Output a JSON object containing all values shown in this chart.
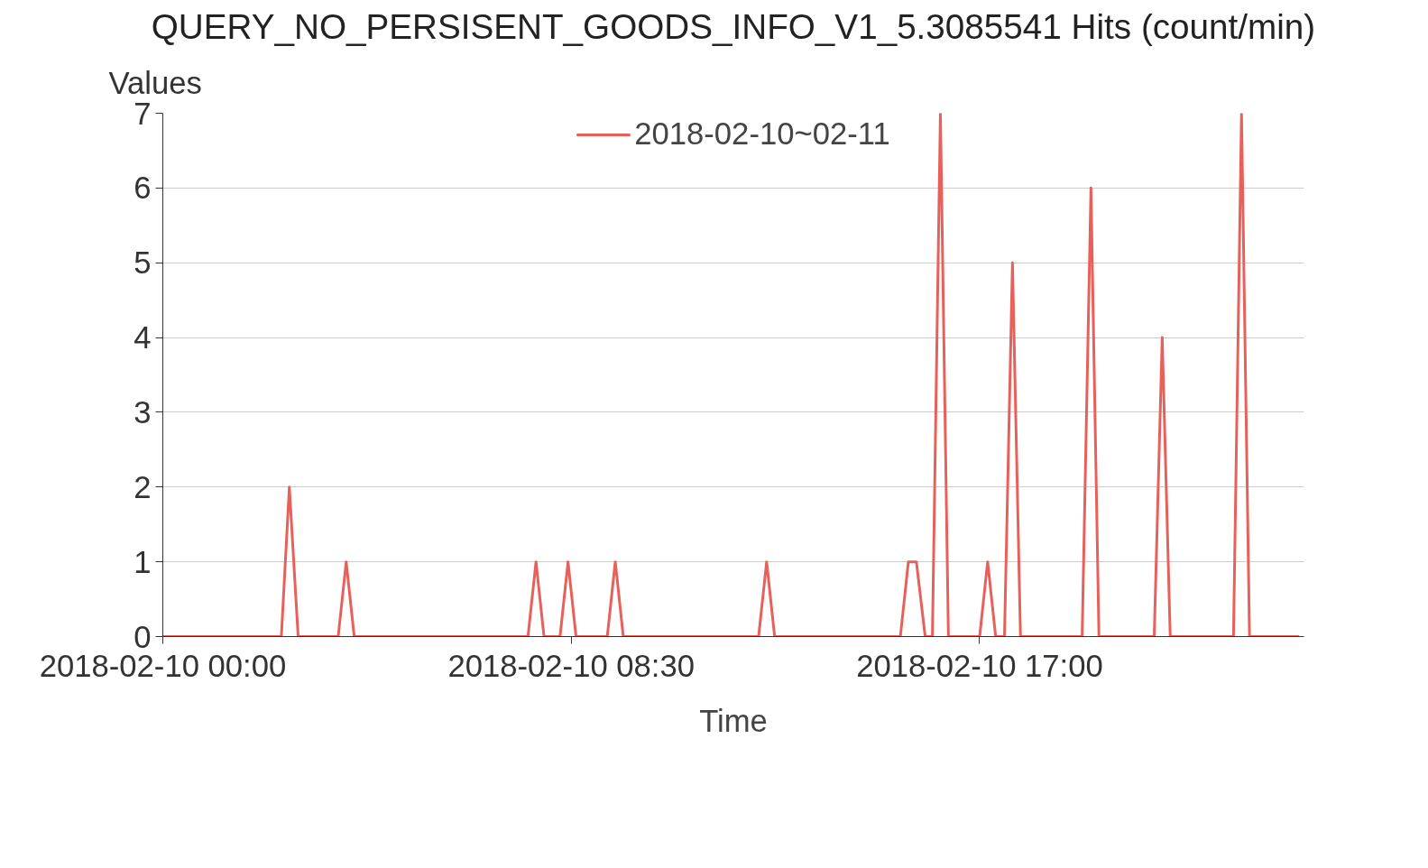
{
  "chart_data": {
    "type": "line",
    "title": "QUERY_NO_PERSISENT_GOODS_INFO_V1_5.3085541 Hits (count/min)",
    "xlabel": "Time",
    "ylabel": "Values",
    "xlim": [
      "2018-02-10T00:00",
      "2018-02-10T23:45"
    ],
    "xticks": [
      {
        "value": "2018-02-10T00:00",
        "label": "2018-02-10 00:00"
      },
      {
        "value": "2018-02-10T08:30",
        "label": "2018-02-10 08:30"
      },
      {
        "value": "2018-02-10T17:00",
        "label": "2018-02-10 17:00"
      }
    ],
    "ylim": [
      0,
      7
    ],
    "yticks": [
      0,
      1,
      2,
      3,
      4,
      5,
      6,
      7
    ],
    "grid": "y",
    "legend": "top",
    "marker": "none",
    "line_style": "solid",
    "series": [
      {
        "name": "2018-02-10~02-11",
        "color": "#e8605a",
        "x": [
          "2018-02-10T00:00",
          "2018-02-10T02:28",
          "2018-02-10T02:38",
          "2018-02-10T02:49",
          "2018-02-10T03:39",
          "2018-02-10T03:49",
          "2018-02-10T03:59",
          "2018-02-10T07:36",
          "2018-02-10T07:46",
          "2018-02-10T07:56",
          "2018-02-10T08:16",
          "2018-02-10T08:26",
          "2018-02-10T08:36",
          "2018-02-10T09:15",
          "2018-02-10T09:25",
          "2018-02-10T09:35",
          "2018-02-10T12:24",
          "2018-02-10T12:34",
          "2018-02-10T12:44",
          "2018-02-10T15:21",
          "2018-02-10T15:31",
          "2018-02-10T15:41",
          "2018-02-10T15:52",
          "2018-02-10T16:01",
          "2018-02-10T16:11",
          "2018-02-10T16:21",
          "2018-02-10T17:00",
          "2018-02-10T17:10",
          "2018-02-10T17:20",
          "2018-02-10T17:31",
          "2018-02-10T17:41",
          "2018-02-10T17:51",
          "2018-02-10T19:08",
          "2018-02-10T19:19",
          "2018-02-10T19:29",
          "2018-02-10T20:38",
          "2018-02-10T20:48",
          "2018-02-10T20:58",
          "2018-02-10T22:17",
          "2018-02-10T22:27",
          "2018-02-10T22:37",
          "2018-02-10T23:39"
        ],
        "values": [
          0,
          0,
          2,
          0,
          0,
          1,
          0,
          0,
          1,
          0,
          0,
          1,
          0,
          0,
          1,
          0,
          0,
          1,
          0,
          0,
          1,
          1,
          0,
          0,
          7,
          0,
          0,
          1,
          0,
          0,
          5,
          0,
          0,
          6,
          0,
          0,
          4,
          0,
          0,
          7,
          0,
          0
        ]
      }
    ]
  }
}
